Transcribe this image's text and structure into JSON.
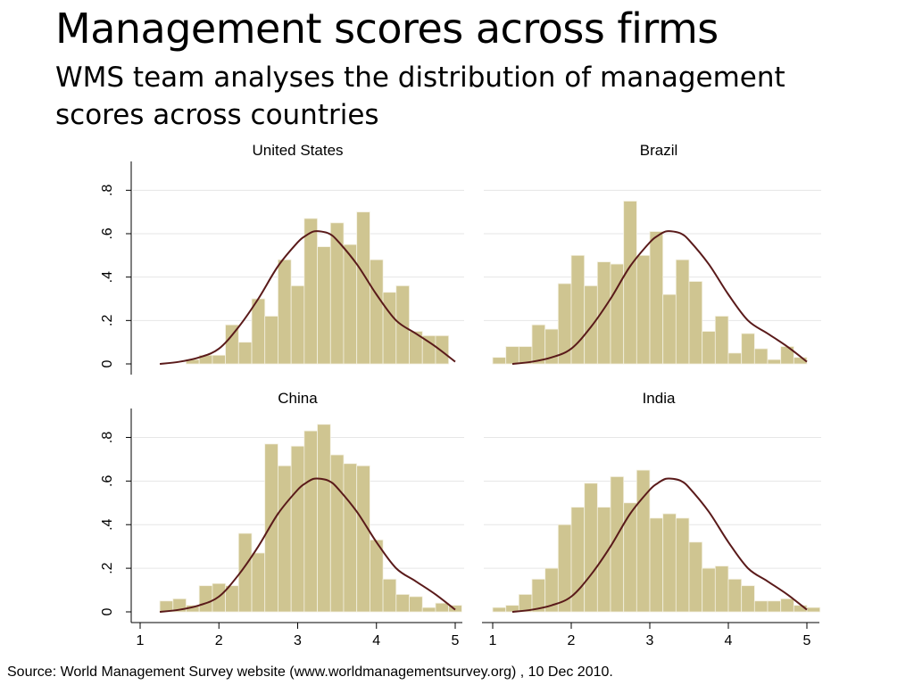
{
  "slide": {
    "title": "Management scores across firms",
    "subtitle": "WMS team analyses the distribution of management scores across countries",
    "source": "Source: World Management Survey website (www.worldmanagementsurvey.org) , 10 Dec 2010."
  },
  "colors": {
    "bar_fill": "#cfc591",
    "bar_stroke": "#f4f1e2",
    "curve": "#5a1a1a",
    "grid": "#e6e6e6",
    "axis": "#000000"
  },
  "chart_data": {
    "type": "bar",
    "subtype": "histogram-with-density-overlay",
    "xlim": [
      1,
      5
    ],
    "ylim": [
      0,
      0.9
    ],
    "x_ticks": [
      1,
      2,
      3,
      4,
      5
    ],
    "y_ticks": [
      0,
      0.2,
      0.4,
      0.6,
      0.8
    ],
    "y_tick_labels": [
      "0",
      ".2",
      ".4",
      ".6",
      ".8"
    ],
    "grid": true,
    "bin_width": 0.1667,
    "reference_curve": {
      "x": [
        1.25,
        1.5,
        1.75,
        2.0,
        2.25,
        2.5,
        2.75,
        3.0,
        3.1,
        3.2,
        3.3,
        3.4,
        3.5,
        3.75,
        4.0,
        4.25,
        4.5,
        4.75,
        5.0
      ],
      "y": [
        0.0,
        0.01,
        0.03,
        0.07,
        0.17,
        0.3,
        0.45,
        0.56,
        0.59,
        0.61,
        0.61,
        0.6,
        0.57,
        0.46,
        0.32,
        0.2,
        0.14,
        0.08,
        0.01
      ]
    },
    "panels": [
      {
        "title": "United States",
        "bins": [
          {
            "start": 1.25,
            "value": 0.0
          },
          {
            "start": 1.417,
            "value": 0.0
          },
          {
            "start": 1.583,
            "value": 0.02
          },
          {
            "start": 1.75,
            "value": 0.04
          },
          {
            "start": 1.917,
            "value": 0.04
          },
          {
            "start": 2.083,
            "value": 0.18
          },
          {
            "start": 2.25,
            "value": 0.1
          },
          {
            "start": 2.417,
            "value": 0.3
          },
          {
            "start": 2.583,
            "value": 0.22
          },
          {
            "start": 2.75,
            "value": 0.48
          },
          {
            "start": 2.917,
            "value": 0.36
          },
          {
            "start": 3.083,
            "value": 0.67
          },
          {
            "start": 3.25,
            "value": 0.54
          },
          {
            "start": 3.417,
            "value": 0.65
          },
          {
            "start": 3.583,
            "value": 0.55
          },
          {
            "start": 3.75,
            "value": 0.7
          },
          {
            "start": 3.917,
            "value": 0.48
          },
          {
            "start": 4.083,
            "value": 0.33
          },
          {
            "start": 4.25,
            "value": 0.36
          },
          {
            "start": 4.417,
            "value": 0.15
          },
          {
            "start": 4.583,
            "value": 0.13
          },
          {
            "start": 4.75,
            "value": 0.13
          },
          {
            "start": 4.917,
            "value": 0.0
          }
        ]
      },
      {
        "title": "Brazil",
        "bins": [
          {
            "start": 1.0,
            "value": 0.03
          },
          {
            "start": 1.167,
            "value": 0.08
          },
          {
            "start": 1.333,
            "value": 0.08
          },
          {
            "start": 1.5,
            "value": 0.18
          },
          {
            "start": 1.667,
            "value": 0.16
          },
          {
            "start": 1.833,
            "value": 0.37
          },
          {
            "start": 2.0,
            "value": 0.5
          },
          {
            "start": 2.167,
            "value": 0.36
          },
          {
            "start": 2.333,
            "value": 0.47
          },
          {
            "start": 2.5,
            "value": 0.46
          },
          {
            "start": 2.667,
            "value": 0.75
          },
          {
            "start": 2.833,
            "value": 0.5
          },
          {
            "start": 3.0,
            "value": 0.61
          },
          {
            "start": 3.167,
            "value": 0.32
          },
          {
            "start": 3.333,
            "value": 0.48
          },
          {
            "start": 3.5,
            "value": 0.38
          },
          {
            "start": 3.667,
            "value": 0.15
          },
          {
            "start": 3.833,
            "value": 0.22
          },
          {
            "start": 4.0,
            "value": 0.05
          },
          {
            "start": 4.167,
            "value": 0.14
          },
          {
            "start": 4.333,
            "value": 0.07
          },
          {
            "start": 4.5,
            "value": 0.02
          },
          {
            "start": 4.667,
            "value": 0.08
          },
          {
            "start": 4.833,
            "value": 0.03
          }
        ]
      },
      {
        "title": "China",
        "bins": [
          {
            "start": 1.25,
            "value": 0.05
          },
          {
            "start": 1.417,
            "value": 0.06
          },
          {
            "start": 1.583,
            "value": 0.03
          },
          {
            "start": 1.75,
            "value": 0.12
          },
          {
            "start": 1.917,
            "value": 0.13
          },
          {
            "start": 2.083,
            "value": 0.12
          },
          {
            "start": 2.25,
            "value": 0.36
          },
          {
            "start": 2.417,
            "value": 0.27
          },
          {
            "start": 2.583,
            "value": 0.77
          },
          {
            "start": 2.75,
            "value": 0.67
          },
          {
            "start": 2.917,
            "value": 0.76
          },
          {
            "start": 3.083,
            "value": 0.83
          },
          {
            "start": 3.25,
            "value": 0.86
          },
          {
            "start": 3.417,
            "value": 0.72
          },
          {
            "start": 3.583,
            "value": 0.68
          },
          {
            "start": 3.75,
            "value": 0.67
          },
          {
            "start": 3.917,
            "value": 0.33
          },
          {
            "start": 4.083,
            "value": 0.15
          },
          {
            "start": 4.25,
            "value": 0.08
          },
          {
            "start": 4.417,
            "value": 0.07
          },
          {
            "start": 4.583,
            "value": 0.02
          },
          {
            "start": 4.75,
            "value": 0.04
          },
          {
            "start": 4.917,
            "value": 0.03
          }
        ]
      },
      {
        "title": "India",
        "bins": [
          {
            "start": 1.0,
            "value": 0.02
          },
          {
            "start": 1.167,
            "value": 0.03
          },
          {
            "start": 1.333,
            "value": 0.08
          },
          {
            "start": 1.5,
            "value": 0.15
          },
          {
            "start": 1.667,
            "value": 0.2
          },
          {
            "start": 1.833,
            "value": 0.4
          },
          {
            "start": 2.0,
            "value": 0.48
          },
          {
            "start": 2.167,
            "value": 0.59
          },
          {
            "start": 2.333,
            "value": 0.48
          },
          {
            "start": 2.5,
            "value": 0.62
          },
          {
            "start": 2.667,
            "value": 0.5
          },
          {
            "start": 2.833,
            "value": 0.65
          },
          {
            "start": 3.0,
            "value": 0.43
          },
          {
            "start": 3.167,
            "value": 0.45
          },
          {
            "start": 3.333,
            "value": 0.43
          },
          {
            "start": 3.5,
            "value": 0.32
          },
          {
            "start": 3.667,
            "value": 0.2
          },
          {
            "start": 3.833,
            "value": 0.21
          },
          {
            "start": 4.0,
            "value": 0.15
          },
          {
            "start": 4.167,
            "value": 0.12
          },
          {
            "start": 4.333,
            "value": 0.05
          },
          {
            "start": 4.5,
            "value": 0.05
          },
          {
            "start": 4.667,
            "value": 0.06
          },
          {
            "start": 4.833,
            "value": 0.03
          },
          {
            "start": 5.0,
            "value": 0.02
          }
        ]
      }
    ]
  }
}
